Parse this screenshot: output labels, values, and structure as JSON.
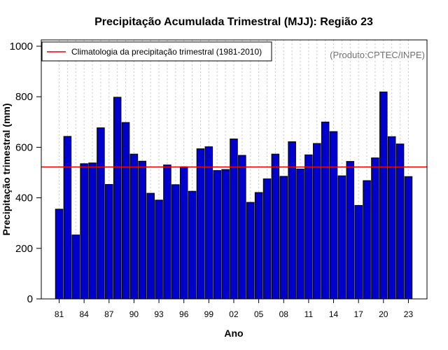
{
  "chart_data": {
    "type": "bar",
    "title": "Precipitação Acumulada Trimestral (MJJ): Região 23",
    "xlabel": "Ano",
    "ylabel": "Precipitação trimestral (mm)",
    "source_label": "(Produto:CPTEC/INPE)",
    "ylim": [
      0,
      1000
    ],
    "yticks": [
      0,
      200,
      400,
      600,
      800,
      1000
    ],
    "grid": "vertical dotted lines at each year",
    "legend_position": "top-left",
    "categories": [
      1981,
      1982,
      1983,
      1984,
      1985,
      1986,
      1987,
      1988,
      1989,
      1990,
      1991,
      1992,
      1993,
      1994,
      1995,
      1996,
      1997,
      1998,
      1999,
      2000,
      2001,
      2002,
      2003,
      2004,
      2005,
      2006,
      2007,
      2008,
      2009,
      2010,
      2011,
      2012,
      2013,
      2014,
      2015,
      2016,
      2017,
      2018,
      2019,
      2020,
      2021,
      2022,
      2023
    ],
    "xtick_labels": [
      {
        "year": 1981,
        "label": "81"
      },
      {
        "year": 1984,
        "label": "84"
      },
      {
        "year": 1987,
        "label": "87"
      },
      {
        "year": 1990,
        "label": "90"
      },
      {
        "year": 1993,
        "label": "93"
      },
      {
        "year": 1996,
        "label": "96"
      },
      {
        "year": 1999,
        "label": "99"
      },
      {
        "year": 2002,
        "label": "02"
      },
      {
        "year": 2005,
        "label": "05"
      },
      {
        "year": 2008,
        "label": "08"
      },
      {
        "year": 2011,
        "label": "11"
      },
      {
        "year": 2014,
        "label": "14"
      },
      {
        "year": 2017,
        "label": "17"
      },
      {
        "year": 2020,
        "label": "20"
      },
      {
        "year": 2023,
        "label": "23"
      }
    ],
    "series": [
      {
        "name": "Precipitação trimestral",
        "color": "#0000cc",
        "values": [
          355,
          643,
          253,
          535,
          538,
          677,
          453,
          798,
          698,
          573,
          545,
          418,
          391,
          530,
          452,
          523,
          426,
          594,
          602,
          508,
          512,
          633,
          568,
          382,
          421,
          475,
          573,
          485,
          622,
          514,
          570,
          615,
          700,
          662,
          487,
          544,
          370,
          468,
          558,
          819,
          642,
          613,
          484
        ]
      }
    ],
    "reference_line": {
      "name": "Climatologia da precipitação trimestral (1981-2010)",
      "value": 522,
      "color": "#ee0000"
    }
  }
}
